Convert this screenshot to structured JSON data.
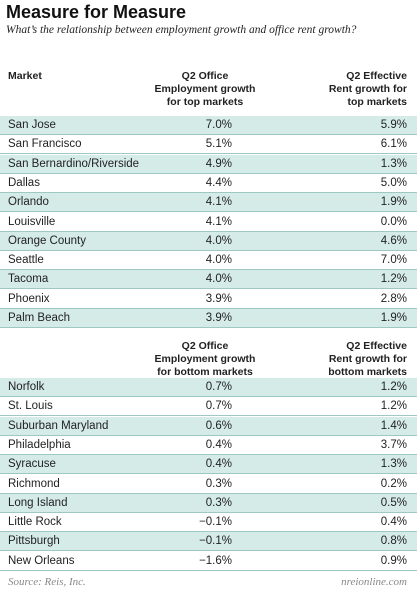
{
  "header": {
    "title": "Measure for Measure",
    "subtitle": "What’s the relationship between employment growth and office rent growth?"
  },
  "top": {
    "columns": [
      "Market",
      "Q2 Office\nEmployment growth\nfor top markets",
      "Q2 Effective\nRent growth for\ntop markets"
    ],
    "rows": [
      [
        "San Jose",
        "7.0%",
        "5.9%"
      ],
      [
        "San Francisco",
        "5.1%",
        "6.1%"
      ],
      [
        "San Bernardino/Riverside",
        "4.9%",
        "1.3%"
      ],
      [
        "Dallas",
        "4.4%",
        "5.0%"
      ],
      [
        "Orlando",
        "4.1%",
        "1.9%"
      ],
      [
        "Louisville",
        "4.1%",
        "0.0%"
      ],
      [
        "Orange County",
        "4.0%",
        "4.6%"
      ],
      [
        "Seattle",
        "4.0%",
        "7.0%"
      ],
      [
        "Tacoma",
        "4.0%",
        "1.2%"
      ],
      [
        "Phoenix",
        "3.9%",
        "2.8%"
      ],
      [
        "Palm Beach",
        "3.9%",
        "1.9%"
      ]
    ]
  },
  "bottom": {
    "columns": [
      "Q2 Office\nEmployment growth\nfor bottom markets",
      "Q2 Effective\nRent growth for\nbottom markets"
    ],
    "rows": [
      [
        "Norfolk",
        "0.7%",
        "1.2%"
      ],
      [
        "St. Louis",
        "0.7%",
        "1.2%"
      ],
      [
        "Suburban Maryland",
        "0.6%",
        "1.4%"
      ],
      [
        "Philadelphia",
        "0.4%",
        "3.7%"
      ],
      [
        "Syracuse",
        "0.4%",
        "1.3%"
      ],
      [
        "Richmond",
        "0.3%",
        "0.2%"
      ],
      [
        "Long Island",
        "0.3%",
        "0.5%"
      ],
      [
        "Little Rock",
        "−0.1%",
        "0.4%"
      ],
      [
        "Pittsburgh",
        "−0.1%",
        "0.8%"
      ],
      [
        "New Orleans",
        "−1.6%",
        "0.9%"
      ]
    ]
  },
  "footer": {
    "source": "Source: Reis, Inc.",
    "site": "nreionline.com"
  }
}
